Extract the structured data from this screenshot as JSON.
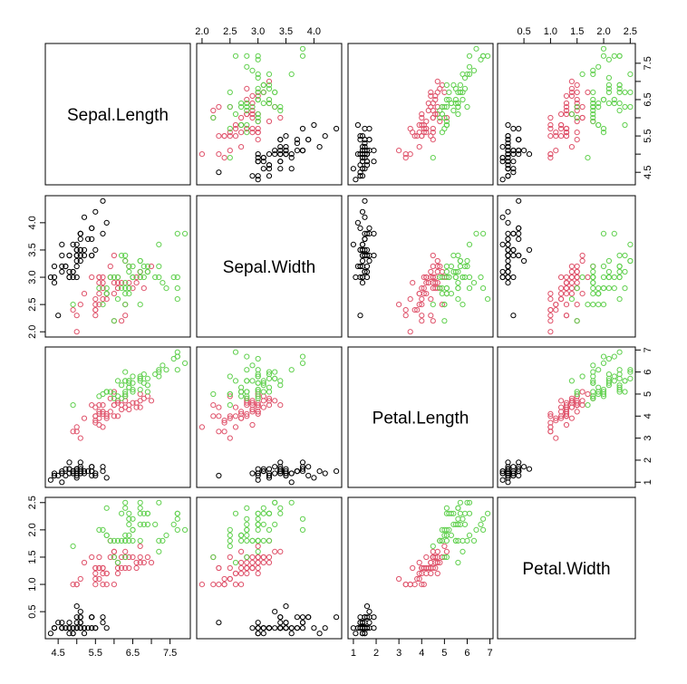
{
  "chart_data": {
    "type": "scatter",
    "title": "",
    "variables": [
      "Sepal.Length",
      "Sepal.Width",
      "Petal.Length",
      "Petal.Width"
    ],
    "axes": {
      "Sepal.Length": {
        "range": [
          4.3,
          7.9
        ],
        "ticks": [
          4.5,
          5.5,
          6.5,
          7.5
        ],
        "tick_labels": [
          "4.5",
          "5.5",
          "6.5",
          "7.5"
        ],
        "extra_ticks": [
          5.0,
          6.0,
          7.0
        ]
      },
      "Sepal.Width": {
        "range": [
          2.0,
          4.4
        ],
        "ticks": [
          2.0,
          2.5,
          3.0,
          3.5,
          4.0
        ],
        "tick_labels": [
          "2.0",
          "2.5",
          "3.0",
          "3.5",
          "4.0"
        ]
      },
      "Petal.Length": {
        "range": [
          1.0,
          6.9
        ],
        "ticks": [
          1,
          2,
          3,
          4,
          5,
          6,
          7
        ],
        "tick_labels": [
          "1",
          "2",
          "3",
          "4",
          "5",
          "6",
          "7"
        ]
      },
      "Petal.Width": {
        "range": [
          0.1,
          2.5
        ],
        "ticks": [
          0.5,
          1.0,
          1.5,
          2.0,
          2.5
        ],
        "tick_labels": [
          "0.5",
          "1.0",
          "1.5",
          "2.0",
          "2.5"
        ]
      }
    },
    "axis_positions": {
      "top": [
        "Sepal.Width",
        "Petal.Width"
      ],
      "bottom": [
        "Sepal.Length",
        "Petal.Length"
      ],
      "left": [
        "Sepal.Width",
        "Petal.Width"
      ],
      "right": [
        "Sepal.Length",
        "Petal.Length"
      ]
    },
    "grid": false,
    "legend": "none",
    "group_colors": [
      "#000000",
      "#DF536B",
      "#61D04F"
    ],
    "series": [
      {
        "values": [
          [
            5.1,
            3.5,
            1.4,
            0.2
          ],
          [
            4.9,
            3.0,
            1.4,
            0.2
          ],
          [
            4.7,
            3.2,
            1.3,
            0.2
          ],
          [
            4.6,
            3.1,
            1.5,
            0.2
          ],
          [
            5.0,
            3.6,
            1.4,
            0.2
          ],
          [
            5.4,
            3.9,
            1.7,
            0.4
          ],
          [
            4.6,
            3.4,
            1.4,
            0.3
          ],
          [
            5.0,
            3.4,
            1.5,
            0.2
          ],
          [
            4.4,
            2.9,
            1.4,
            0.2
          ],
          [
            4.9,
            3.1,
            1.5,
            0.1
          ],
          [
            5.4,
            3.7,
            1.5,
            0.2
          ],
          [
            4.8,
            3.4,
            1.6,
            0.2
          ],
          [
            4.8,
            3.0,
            1.4,
            0.1
          ],
          [
            4.3,
            3.0,
            1.1,
            0.1
          ],
          [
            5.8,
            4.0,
            1.2,
            0.2
          ],
          [
            5.7,
            4.4,
            1.5,
            0.4
          ],
          [
            5.4,
            3.9,
            1.3,
            0.4
          ],
          [
            5.1,
            3.5,
            1.4,
            0.3
          ],
          [
            5.7,
            3.8,
            1.7,
            0.3
          ],
          [
            5.1,
            3.8,
            1.5,
            0.3
          ],
          [
            5.4,
            3.4,
            1.7,
            0.2
          ],
          [
            5.1,
            3.7,
            1.5,
            0.4
          ],
          [
            4.6,
            3.6,
            1.0,
            0.2
          ],
          [
            5.1,
            3.3,
            1.7,
            0.5
          ],
          [
            4.8,
            3.4,
            1.9,
            0.2
          ],
          [
            5.0,
            3.0,
            1.6,
            0.2
          ],
          [
            5.0,
            3.4,
            1.6,
            0.4
          ],
          [
            5.2,
            3.5,
            1.5,
            0.2
          ],
          [
            5.2,
            3.4,
            1.4,
            0.2
          ],
          [
            4.7,
            3.2,
            1.6,
            0.2
          ],
          [
            4.8,
            3.1,
            1.6,
            0.2
          ],
          [
            5.4,
            3.4,
            1.5,
            0.4
          ],
          [
            5.2,
            4.1,
            1.5,
            0.1
          ],
          [
            5.5,
            4.2,
            1.4,
            0.2
          ],
          [
            4.9,
            3.1,
            1.5,
            0.2
          ],
          [
            5.0,
            3.2,
            1.2,
            0.2
          ],
          [
            5.5,
            3.5,
            1.3,
            0.2
          ],
          [
            4.9,
            3.6,
            1.4,
            0.1
          ],
          [
            4.4,
            3.0,
            1.3,
            0.2
          ],
          [
            5.1,
            3.4,
            1.5,
            0.2
          ],
          [
            5.0,
            3.5,
            1.3,
            0.3
          ],
          [
            4.5,
            2.3,
            1.3,
            0.3
          ],
          [
            4.4,
            3.2,
            1.3,
            0.2
          ],
          [
            5.0,
            3.5,
            1.6,
            0.6
          ],
          [
            5.1,
            3.8,
            1.9,
            0.4
          ],
          [
            4.8,
            3.0,
            1.4,
            0.3
          ],
          [
            5.1,
            3.8,
            1.6,
            0.2
          ],
          [
            4.6,
            3.2,
            1.4,
            0.2
          ],
          [
            5.3,
            3.7,
            1.5,
            0.2
          ],
          [
            5.0,
            3.3,
            1.4,
            0.2
          ]
        ]
      },
      {
        "values": [
          [
            7.0,
            3.2,
            4.7,
            1.4
          ],
          [
            6.4,
            3.2,
            4.5,
            1.5
          ],
          [
            6.9,
            3.1,
            4.9,
            1.5
          ],
          [
            5.5,
            2.3,
            4.0,
            1.3
          ],
          [
            6.5,
            2.8,
            4.6,
            1.5
          ],
          [
            5.7,
            2.8,
            4.5,
            1.3
          ],
          [
            6.3,
            3.3,
            4.7,
            1.6
          ],
          [
            4.9,
            2.4,
            3.3,
            1.0
          ],
          [
            6.6,
            2.9,
            4.6,
            1.3
          ],
          [
            5.2,
            2.7,
            3.9,
            1.4
          ],
          [
            5.0,
            2.0,
            3.5,
            1.0
          ],
          [
            5.9,
            3.0,
            4.2,
            1.5
          ],
          [
            6.0,
            2.2,
            4.0,
            1.0
          ],
          [
            6.1,
            2.9,
            4.7,
            1.4
          ],
          [
            5.6,
            2.9,
            3.6,
            1.3
          ],
          [
            6.7,
            3.1,
            4.4,
            1.4
          ],
          [
            5.6,
            3.0,
            4.5,
            1.5
          ],
          [
            5.8,
            2.7,
            4.1,
            1.0
          ],
          [
            6.2,
            2.2,
            4.5,
            1.5
          ],
          [
            5.6,
            2.5,
            3.9,
            1.1
          ],
          [
            5.9,
            3.2,
            4.8,
            1.8
          ],
          [
            6.1,
            2.8,
            4.0,
            1.3
          ],
          [
            6.3,
            2.5,
            4.9,
            1.5
          ],
          [
            6.1,
            2.8,
            4.7,
            1.2
          ],
          [
            6.4,
            2.9,
            4.3,
            1.3
          ],
          [
            6.6,
            3.0,
            4.4,
            1.4
          ],
          [
            6.8,
            2.8,
            4.8,
            1.4
          ],
          [
            6.7,
            3.0,
            5.0,
            1.7
          ],
          [
            6.0,
            2.9,
            4.5,
            1.5
          ],
          [
            5.7,
            2.6,
            3.5,
            1.0
          ],
          [
            5.5,
            2.4,
            3.8,
            1.1
          ],
          [
            5.5,
            2.4,
            3.7,
            1.0
          ],
          [
            5.8,
            2.7,
            3.9,
            1.2
          ],
          [
            6.0,
            2.7,
            5.1,
            1.6
          ],
          [
            5.4,
            3.0,
            4.5,
            1.5
          ],
          [
            6.0,
            3.4,
            4.5,
            1.6
          ],
          [
            6.7,
            3.1,
            4.7,
            1.5
          ],
          [
            6.3,
            2.3,
            4.4,
            1.3
          ],
          [
            5.6,
            3.0,
            4.1,
            1.3
          ],
          [
            5.5,
            2.5,
            4.0,
            1.3
          ],
          [
            5.5,
            2.6,
            4.4,
            1.2
          ],
          [
            6.1,
            3.0,
            4.6,
            1.4
          ],
          [
            5.8,
            2.6,
            4.0,
            1.2
          ],
          [
            5.0,
            2.3,
            3.3,
            1.0
          ],
          [
            5.6,
            2.7,
            4.2,
            1.3
          ],
          [
            5.7,
            3.0,
            4.2,
            1.2
          ],
          [
            5.7,
            2.9,
            4.2,
            1.3
          ],
          [
            6.2,
            2.9,
            4.3,
            1.3
          ],
          [
            5.1,
            2.5,
            3.0,
            1.1
          ],
          [
            5.7,
            2.8,
            4.1,
            1.3
          ]
        ]
      },
      {
        "values": [
          [
            6.3,
            3.3,
            6.0,
            2.5
          ],
          [
            5.8,
            2.7,
            5.1,
            1.9
          ],
          [
            7.1,
            3.0,
            5.9,
            2.1
          ],
          [
            6.3,
            2.9,
            5.6,
            1.8
          ],
          [
            6.5,
            3.0,
            5.8,
            2.2
          ],
          [
            7.6,
            3.0,
            6.6,
            2.1
          ],
          [
            4.9,
            2.5,
            4.5,
            1.7
          ],
          [
            7.3,
            2.9,
            6.3,
            1.8
          ],
          [
            6.7,
            2.5,
            5.8,
            1.8
          ],
          [
            7.2,
            3.6,
            6.1,
            2.5
          ],
          [
            6.5,
            3.2,
            5.1,
            2.0
          ],
          [
            6.4,
            2.7,
            5.3,
            1.9
          ],
          [
            6.8,
            3.0,
            5.5,
            2.1
          ],
          [
            5.7,
            2.5,
            5.0,
            2.0
          ],
          [
            5.8,
            2.8,
            5.1,
            2.4
          ],
          [
            6.4,
            3.2,
            5.3,
            2.3
          ],
          [
            6.5,
            3.0,
            5.5,
            1.8
          ],
          [
            7.7,
            3.8,
            6.7,
            2.2
          ],
          [
            7.7,
            2.6,
            6.9,
            2.3
          ],
          [
            6.0,
            2.2,
            5.0,
            1.5
          ],
          [
            6.9,
            3.2,
            5.7,
            2.3
          ],
          [
            5.6,
            2.8,
            4.9,
            2.0
          ],
          [
            7.7,
            2.8,
            6.7,
            2.0
          ],
          [
            6.3,
            2.7,
            4.9,
            1.8
          ],
          [
            6.7,
            3.3,
            5.7,
            2.1
          ],
          [
            7.2,
            3.2,
            6.0,
            1.8
          ],
          [
            6.2,
            2.8,
            4.8,
            1.8
          ],
          [
            6.1,
            3.0,
            4.9,
            1.8
          ],
          [
            6.4,
            2.8,
            5.6,
            2.1
          ],
          [
            7.2,
            3.0,
            5.8,
            1.6
          ],
          [
            7.4,
            2.8,
            6.1,
            1.9
          ],
          [
            7.9,
            3.8,
            6.4,
            2.0
          ],
          [
            6.4,
            2.8,
            5.6,
            2.2
          ],
          [
            6.3,
            2.8,
            5.1,
            1.5
          ],
          [
            6.1,
            2.6,
            5.6,
            1.4
          ],
          [
            7.7,
            3.0,
            6.1,
            2.3
          ],
          [
            6.3,
            3.4,
            5.6,
            2.4
          ],
          [
            6.4,
            3.1,
            5.5,
            1.8
          ],
          [
            6.0,
            3.0,
            4.8,
            1.8
          ],
          [
            6.9,
            3.1,
            5.4,
            2.1
          ],
          [
            6.7,
            3.1,
            5.6,
            2.4
          ],
          [
            6.9,
            3.1,
            5.1,
            2.3
          ],
          [
            5.8,
            2.7,
            5.1,
            1.9
          ],
          [
            6.8,
            3.2,
            5.9,
            2.3
          ],
          [
            6.7,
            3.3,
            5.7,
            2.5
          ],
          [
            6.7,
            3.0,
            5.2,
            2.3
          ],
          [
            6.3,
            2.5,
            5.0,
            1.9
          ],
          [
            6.5,
            3.0,
            5.2,
            2.0
          ],
          [
            6.2,
            3.4,
            5.4,
            2.3
          ],
          [
            5.9,
            3.0,
            5.1,
            1.8
          ]
        ]
      }
    ]
  }
}
